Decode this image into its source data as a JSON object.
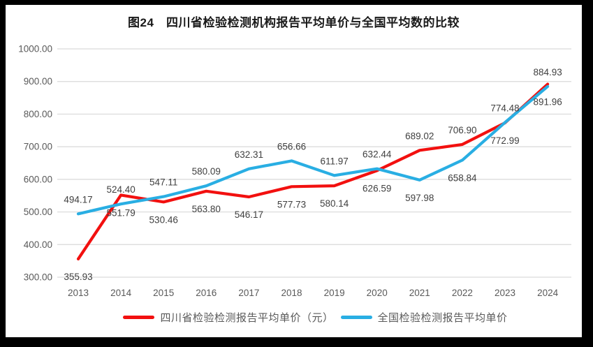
{
  "colors": {
    "frame": "#000000",
    "background": "#ffffff",
    "grid": "#d9d9d9",
    "axis_text": "#595959",
    "data_label_text": "#404040",
    "sichuan_red": "#f2100f",
    "national_blue": "#29aee3"
  },
  "chart_data": {
    "type": "line",
    "title": "图24　四川省检验检测机构报告平均单价与全国平均数的比较",
    "x": [
      "2013",
      "2014",
      "2015",
      "2016",
      "2017",
      "2018",
      "2019",
      "2020",
      "2021",
      "2022",
      "2023",
      "2024"
    ],
    "series": [
      {
        "name": "四川省检验检测报告平均单价（元）",
        "color": "#f2100f",
        "values": [
          355.93,
          551.79,
          530.46,
          563.8,
          546.17,
          577.73,
          580.14,
          626.59,
          689.02,
          706.9,
          772.99,
          891.96
        ],
        "label_side": [
          "below",
          "below",
          "below",
          "below",
          "below",
          "below",
          "below",
          "below",
          "above",
          "above",
          "below",
          "below"
        ]
      },
      {
        "name": "全国检验检测报告平均单价",
        "color": "#29aee3",
        "values": [
          494.17,
          524.4,
          547.11,
          580.09,
          632.31,
          656.66,
          611.97,
          632.44,
          597.98,
          658.84,
          774.48,
          884.93
        ],
        "label_side": [
          "above",
          "above",
          "above",
          "above",
          "above",
          "above",
          "above",
          "above",
          "below",
          "below",
          "above",
          "above"
        ]
      }
    ],
    "ylim": [
      300,
      1000
    ],
    "ytick_labels": [
      "1000.00",
      "900.00",
      "800.00",
      "700.00",
      "600.00",
      "500.00",
      "400.00",
      "300.00"
    ],
    "grid": true,
    "legend_position": "bottom",
    "value_decimals": 2
  }
}
